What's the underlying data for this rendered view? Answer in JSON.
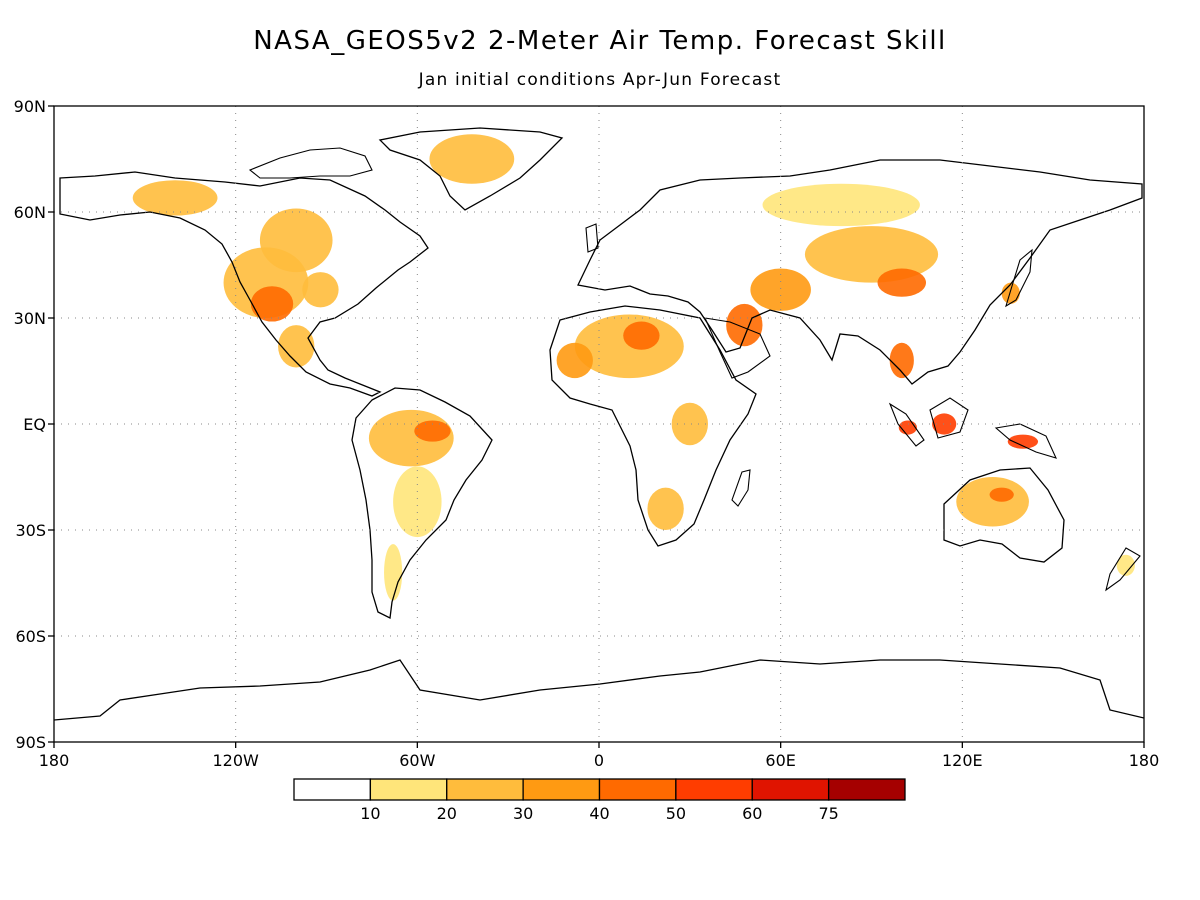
{
  "title": "NASA_GEOS5v2 2-Meter Air Temp. Forecast Skill",
  "subtitle": "Jan initial conditions  Apr-Jun Forecast",
  "map": {
    "projection": "equirectangular",
    "lon_range": [
      -180,
      180
    ],
    "lat_range": [
      -90,
      90
    ],
    "gridlines": "dotted",
    "lat_ticks": [
      {
        "value": 90,
        "label": "90N"
      },
      {
        "value": 60,
        "label": "60N"
      },
      {
        "value": 30,
        "label": "30N"
      },
      {
        "value": 0,
        "label": "EQ"
      },
      {
        "value": -30,
        "label": "30S"
      },
      {
        "value": -60,
        "label": "60S"
      },
      {
        "value": -90,
        "label": "90S"
      }
    ],
    "lon_ticks": [
      {
        "value": -180,
        "label": "180"
      },
      {
        "value": -120,
        "label": "120W"
      },
      {
        "value": -60,
        "label": "60W"
      },
      {
        "value": 0,
        "label": "0"
      },
      {
        "value": 60,
        "label": "60E"
      },
      {
        "value": 120,
        "label": "120E"
      },
      {
        "value": 180,
        "label": "180"
      }
    ],
    "skill_regions": [
      {
        "lon": -110,
        "lat": 40,
        "rx": 14,
        "ry": 10,
        "level": 2
      },
      {
        "lon": -108,
        "lat": 34,
        "rx": 7,
        "ry": 5,
        "level": 4
      },
      {
        "lon": -100,
        "lat": 52,
        "rx": 12,
        "ry": 9,
        "level": 2
      },
      {
        "lon": -140,
        "lat": 64,
        "rx": 14,
        "ry": 5,
        "level": 2
      },
      {
        "lon": -92,
        "lat": 38,
        "rx": 6,
        "ry": 5,
        "level": 2
      },
      {
        "lon": -100,
        "lat": 22,
        "rx": 6,
        "ry": 6,
        "level": 2
      },
      {
        "lon": -42,
        "lat": 75,
        "rx": 14,
        "ry": 7,
        "level": 2
      },
      {
        "lon": -62,
        "lat": -4,
        "rx": 14,
        "ry": 8,
        "level": 2
      },
      {
        "lon": -55,
        "lat": -2,
        "rx": 6,
        "ry": 3,
        "level": 4
      },
      {
        "lon": -60,
        "lat": -22,
        "rx": 8,
        "ry": 10,
        "level": 1
      },
      {
        "lon": -68,
        "lat": -42,
        "rx": 3,
        "ry": 8,
        "level": 1
      },
      {
        "lon": 10,
        "lat": 22,
        "rx": 18,
        "ry": 9,
        "level": 2
      },
      {
        "lon": 14,
        "lat": 25,
        "rx": 6,
        "ry": 4,
        "level": 4
      },
      {
        "lon": -8,
        "lat": 18,
        "rx": 6,
        "ry": 5,
        "level": 3
      },
      {
        "lon": 30,
        "lat": 0,
        "rx": 6,
        "ry": 6,
        "level": 2
      },
      {
        "lon": 22,
        "lat": -24,
        "rx": 6,
        "ry": 6,
        "level": 2
      },
      {
        "lon": 48,
        "lat": 28,
        "rx": 6,
        "ry": 6,
        "level": 4
      },
      {
        "lon": 60,
        "lat": 38,
        "rx": 10,
        "ry": 6,
        "level": 3
      },
      {
        "lon": 90,
        "lat": 48,
        "rx": 22,
        "ry": 8,
        "level": 2
      },
      {
        "lon": 100,
        "lat": 40,
        "rx": 8,
        "ry": 4,
        "level": 4
      },
      {
        "lon": 80,
        "lat": 62,
        "rx": 26,
        "ry": 6,
        "level": 1
      },
      {
        "lon": 100,
        "lat": 18,
        "rx": 4,
        "ry": 5,
        "level": 4
      },
      {
        "lon": 114,
        "lat": 0,
        "rx": 4,
        "ry": 3,
        "level": 5
      },
      {
        "lon": 102,
        "lat": -1,
        "rx": 3,
        "ry": 2,
        "level": 5
      },
      {
        "lon": 140,
        "lat": -5,
        "rx": 5,
        "ry": 2,
        "level": 5
      },
      {
        "lon": 130,
        "lat": -22,
        "rx": 12,
        "ry": 7,
        "level": 2
      },
      {
        "lon": 133,
        "lat": -20,
        "rx": 4,
        "ry": 2,
        "level": 4
      },
      {
        "lon": 136,
        "lat": 37,
        "rx": 3,
        "ry": 3,
        "level": 3
      },
      {
        "lon": 174,
        "lat": -40,
        "rx": 3,
        "ry": 3,
        "level": 1
      }
    ]
  },
  "colorbar": {
    "colors": [
      "#ffffff",
      "#ffe57a",
      "#ffbc3c",
      "#ff9a12",
      "#ff6a00",
      "#ff3d00",
      "#e01400",
      "#a50000"
    ],
    "labels": [
      "10",
      "20",
      "30",
      "40",
      "50",
      "60",
      "75"
    ]
  }
}
